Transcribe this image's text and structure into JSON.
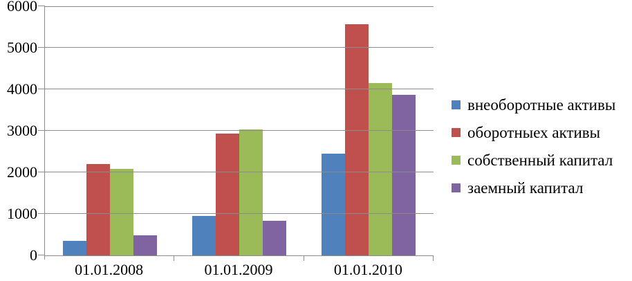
{
  "chart_data": {
    "type": "bar",
    "title": "",
    "xlabel": "",
    "ylabel": "",
    "categories": [
      "01.01.2008",
      "01.01.2009",
      "01.01.2010"
    ],
    "series": [
      {
        "name": "внеоборотные активы",
        "color": "#4F81BD",
        "values": [
          350,
          950,
          2450
        ]
      },
      {
        "name": "оборотныех активы",
        "color": "#C0504D",
        "values": [
          2200,
          2940,
          5560
        ]
      },
      {
        "name": "собственный капитал",
        "color": "#9BBB59",
        "values": [
          2080,
          3040,
          4150
        ]
      },
      {
        "name": "заемный капитал",
        "color": "#8064A2",
        "values": [
          480,
          840,
          3860
        ]
      }
    ],
    "ylim": [
      0,
      6000
    ],
    "yticks": [
      0,
      1000,
      2000,
      3000,
      4000,
      5000,
      6000
    ],
    "grid": true,
    "legend_position": "right",
    "axis_color": "#8C8C8C",
    "gridline_color": "#8C8C8C",
    "background_color": "#FFFFFF"
  }
}
